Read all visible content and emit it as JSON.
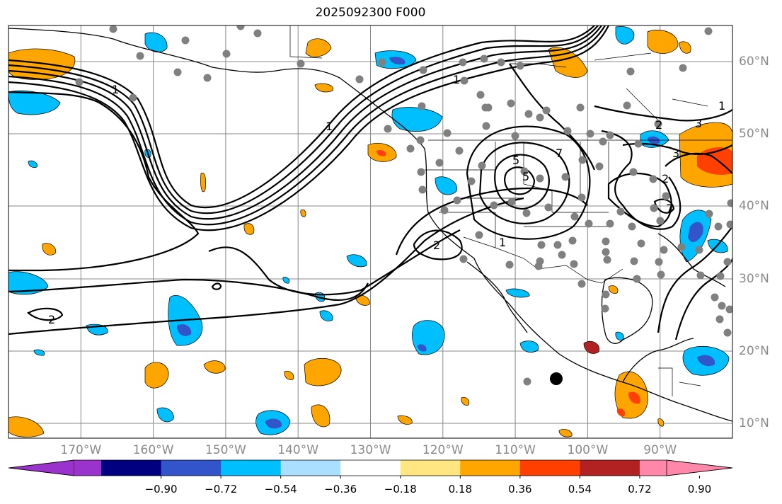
{
  "title": "2025092300 F000",
  "map": {
    "lon_labels": [
      "170°W",
      "160°W",
      "150°W",
      "140°W",
      "130°W",
      "120°W",
      "110°W",
      "100°W",
      "90°W"
    ],
    "lat_labels": [
      "60°N",
      "50°N",
      "40°N",
      "30°N",
      "20°N",
      "10°N"
    ],
    "lon_values": [
      -170,
      -160,
      -150,
      -140,
      -130,
      -120,
      -110,
      -100,
      -90
    ],
    "lat_values": [
      60,
      50,
      40,
      30,
      20,
      10
    ],
    "lon_range": [
      -180,
      -80
    ],
    "lat_range": [
      8,
      66
    ],
    "contour_labels": [
      "1",
      "1",
      "1",
      "1",
      "2",
      "2",
      "2",
      "2",
      "3",
      "3",
      "5",
      "5",
      "7",
      "7",
      "1"
    ]
  },
  "colorbar": {
    "colors": [
      "#9933cc",
      "#000080",
      "#3355cc",
      "#00bfff",
      "#aadfff",
      "#ffffff",
      "#ffe680",
      "#ffa500",
      "#ff4000",
      "#b22222",
      "#ff88aa"
    ],
    "tick_labels": [
      "−0.90",
      "−0.72",
      "−0.54",
      "−0.36",
      "−0.18",
      "0.18",
      "0.36",
      "0.54",
      "0.72",
      "0.90"
    ],
    "tick_values": [
      -0.9,
      -0.72,
      -0.54,
      -0.36,
      -0.18,
      0.18,
      0.36,
      0.54,
      0.72,
      0.9
    ]
  }
}
